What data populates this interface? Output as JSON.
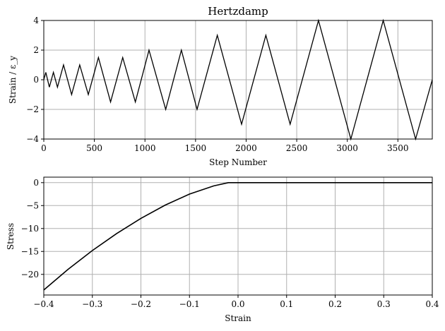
{
  "chart_data": [
    {
      "type": "line",
      "title": "Hertzdamp",
      "xlabel": "Step Number",
      "ylabel": "Strain / ε_y",
      "xlim": [
        0,
        3840
      ],
      "ylim": [
        -4,
        4
      ],
      "xticks": [
        0,
        500,
        1000,
        1500,
        2000,
        2500,
        3000,
        3500
      ],
      "xtick_labels": [
        "0",
        "500",
        "1000",
        "1500",
        "2000",
        "2500",
        "3000",
        "3500"
      ],
      "yticks": [
        -4,
        -2,
        0,
        2,
        4
      ],
      "ytick_labels": [
        "−4",
        "−2",
        "0",
        "2",
        "4"
      ],
      "grid": true,
      "line_color": "#000000",
      "series": [
        {
          "x": [
            0,
            20,
            55,
            95,
            135,
            195,
            275,
            355,
            440,
            540,
            660,
            780,
            905,
            1040,
            1205,
            1360,
            1515,
            1715,
            1955,
            2195,
            2435,
            2715,
            3035,
            3355,
            3675,
            3840
          ],
          "y": [
            0,
            0.5,
            -0.5,
            0.5,
            -0.5,
            1,
            -1,
            1,
            -1,
            1.5,
            -1.5,
            1.5,
            -1.5,
            2,
            -2,
            2,
            -2,
            3,
            -3,
            3,
            -3,
            4,
            -4,
            4,
            -4,
            0
          ]
        }
      ]
    },
    {
      "type": "line",
      "title": "",
      "xlabel": "Strain",
      "ylabel": "Stress",
      "xlim": [
        -0.4,
        0.4
      ],
      "ylim": [
        -24.5,
        1.2
      ],
      "xticks": [
        -0.4,
        -0.3,
        -0.2,
        -0.1,
        0.0,
        0.1,
        0.2,
        0.3,
        0.4
      ],
      "xtick_labels": [
        "−0.4",
        "−0.3",
        "−0.2",
        "−0.1",
        "0.0",
        "0.1",
        "0.2",
        "0.3",
        "0.4"
      ],
      "yticks": [
        0,
        -5,
        -10,
        -15,
        -20
      ],
      "ytick_labels": [
        "0",
        "−5",
        "−10",
        "−15",
        "−20"
      ],
      "grid": true,
      "line_color": "#000000",
      "series": [
        {
          "x": [
            -0.4,
            -0.35,
            -0.3,
            -0.25,
            -0.2,
            -0.15,
            -0.1,
            -0.05,
            -0.02,
            0.0,
            0.1,
            0.2,
            0.3,
            0.4
          ],
          "y": [
            -23.4,
            -18.9,
            -14.8,
            -11.1,
            -7.8,
            -4.9,
            -2.5,
            -0.7,
            0.0,
            0.0,
            0.0,
            0.0,
            0.0,
            0.0
          ]
        }
      ]
    }
  ]
}
